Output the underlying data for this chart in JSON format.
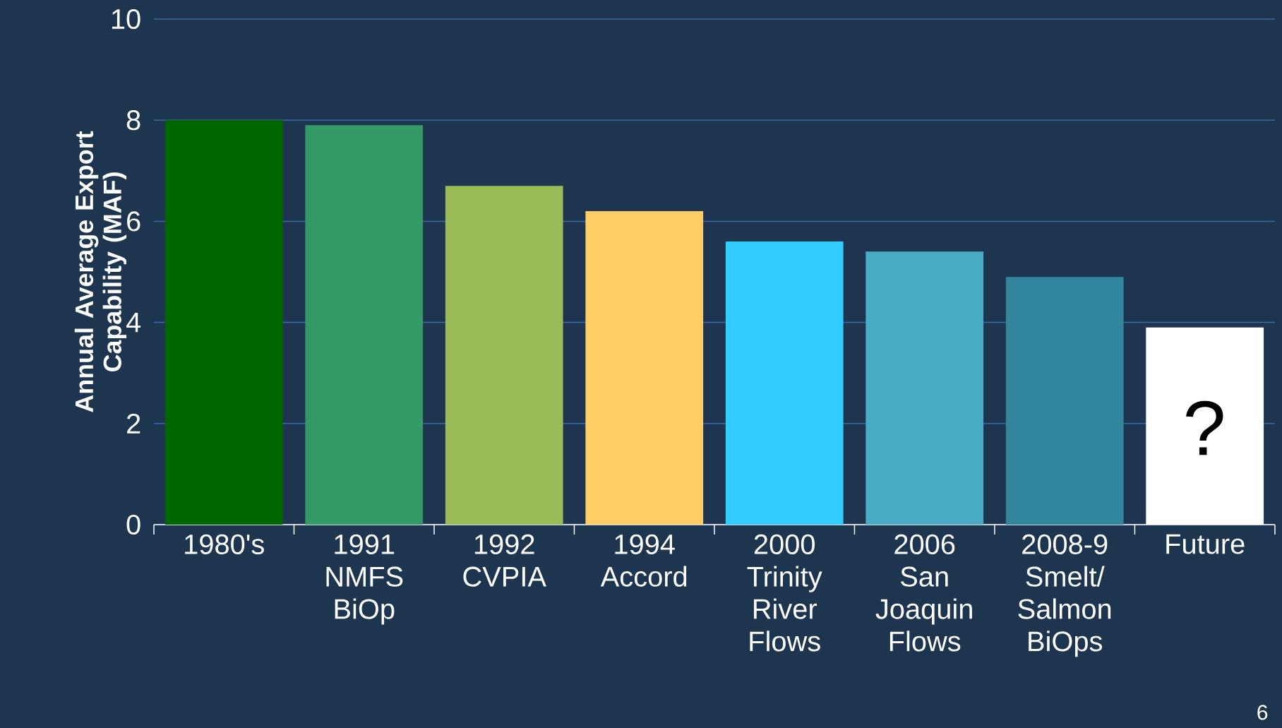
{
  "chart_data": {
    "type": "bar",
    "ylabel": "Annual Average Export Capability (MAF)",
    "categories": [
      "1980's",
      "1991 NMFS BiOp",
      "1992 CVPIA",
      "1994 Accord",
      "2000 Trinity River Flows",
      "2006 San Joaquin Flows",
      "2008-9 Smelt/ Salmon BiOps",
      "Future"
    ],
    "values": [
      8.0,
      7.9,
      6.7,
      6.2,
      5.6,
      5.4,
      4.9,
      3.9
    ],
    "colors": [
      "#006400",
      "#339966",
      "#9bbb59",
      "#ffcc66",
      "#33ccff",
      "#4bacc6",
      "#31859c",
      "#ffffff"
    ],
    "ylim": [
      0,
      10
    ],
    "yticks": [
      0,
      2,
      4,
      6,
      8,
      10
    ],
    "grid": "y",
    "annotations": [
      "?",
      "6"
    ]
  }
}
